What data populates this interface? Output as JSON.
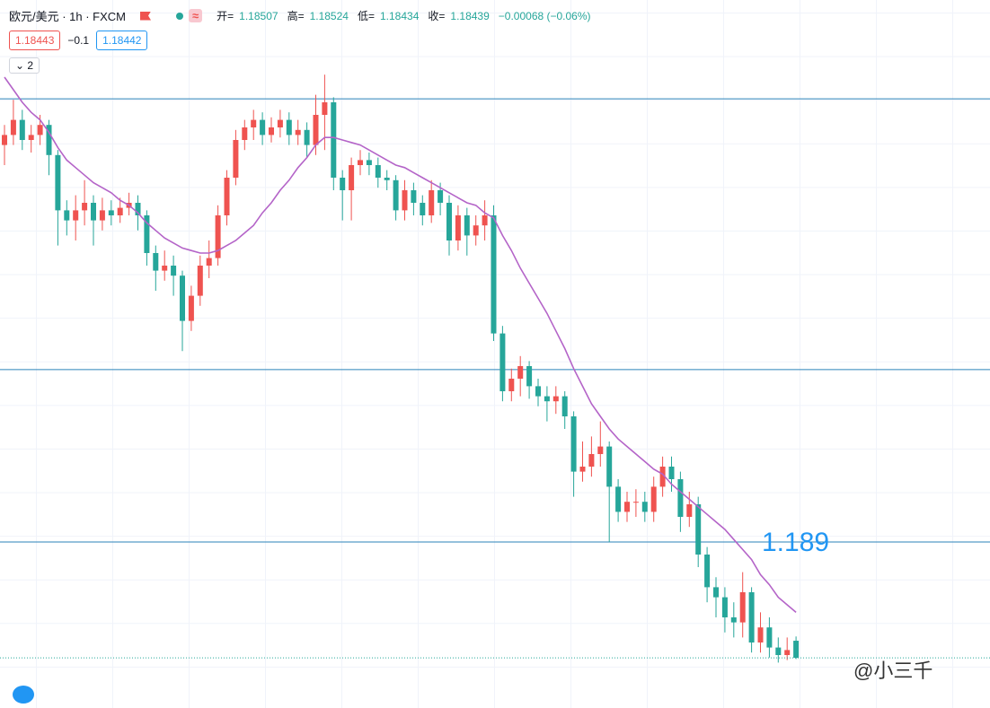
{
  "header": {
    "symbol": "欧元/美元 · 1h · FXCM",
    "ohlc": [
      {
        "label": "开=",
        "value": "1.18507"
      },
      {
        "label": "高=",
        "value": "1.18524"
      },
      {
        "label": "低=",
        "value": "1.18434"
      },
      {
        "label": "收=",
        "value": "1.18439"
      }
    ],
    "change": "−0.00068 (−0.06%)",
    "wave": "≈"
  },
  "quote": {
    "sell": "1.18443",
    "spread": "−0.1",
    "buy": "1.18442"
  },
  "indicators_toggle": "2",
  "watermark": "@小三千",
  "chart_data": {
    "type": "candlestick",
    "ylim": [
      1.1825,
      1.2095
    ],
    "up_color": "#ef5350",
    "down_color": "#26a69a",
    "open": [
      1.2048,
      1.2052,
      1.2058,
      1.205,
      1.2052,
      1.2056,
      1.2044,
      1.2022,
      1.2018,
      1.2022,
      1.2025,
      1.2018,
      1.2022,
      1.202,
      1.2023,
      1.2025,
      1.202,
      1.2005,
      1.1998,
      1.2,
      1.1996,
      1.1978,
      1.1988,
      1.2,
      1.2003,
      1.202,
      1.2035,
      1.205,
      1.2055,
      1.2058,
      1.2052,
      1.2055,
      1.2058,
      1.2052,
      1.2054,
      1.2048,
      1.206,
      1.2065,
      1.2035,
      1.203,
      1.204,
      1.2042,
      1.204,
      1.2035,
      1.2034,
      1.2022,
      1.203,
      1.2025,
      1.202,
      1.203,
      1.2025,
      1.201,
      1.202,
      1.2012,
      1.2016,
      1.202,
      1.1973,
      1.195,
      1.1955,
      1.196,
      1.1952,
      1.1948,
      1.1946,
      1.1948,
      1.194,
      1.1918,
      1.192,
      1.1925,
      1.1928,
      1.1912,
      1.1902,
      1.1906,
      1.1906,
      1.1902,
      1.1912,
      1.192,
      1.1915,
      1.19,
      1.1905,
      1.1885,
      1.1872,
      1.1868,
      1.186,
      1.1858,
      1.187,
      1.185,
      1.1856,
      1.1848,
      1.1845,
      1.18507
    ],
    "high": [
      1.2056,
      1.2066,
      1.2062,
      1.2056,
      1.206,
      1.2058,
      1.2046,
      1.2026,
      1.2028,
      1.2034,
      1.2028,
      1.2027,
      1.2026,
      1.2027,
      1.2029,
      1.2028,
      1.2022,
      1.2008,
      1.2006,
      1.2004,
      1.1998,
      1.1992,
      1.2004,
      1.201,
      1.2024,
      1.2038,
      1.2054,
      1.2058,
      1.2062,
      1.2061,
      1.2059,
      1.2062,
      1.2061,
      1.2058,
      1.2057,
      1.2068,
      1.2076,
      1.2067,
      1.2038,
      1.2043,
      1.2046,
      1.2045,
      1.2043,
      1.2038,
      1.2036,
      1.2034,
      1.2033,
      1.2028,
      1.2034,
      1.2033,
      1.2028,
      1.2024,
      1.2023,
      1.202,
      1.2026,
      1.2024,
      1.1976,
      1.1959,
      1.1964,
      1.1962,
      1.1955,
      1.1952,
      1.1952,
      1.195,
      1.1942,
      1.193,
      1.1932,
      1.1938,
      1.193,
      1.1915,
      1.191,
      1.1911,
      1.191,
      1.1916,
      1.1924,
      1.1924,
      1.1918,
      1.191,
      1.1908,
      1.1888,
      1.1876,
      1.1872,
      1.1866,
      1.1878,
      1.1872,
      1.1862,
      1.186,
      1.1852,
      1.1852,
      1.18524
    ],
    "low": [
      1.204,
      1.2048,
      1.2046,
      1.2045,
      1.2048,
      1.2036,
      1.2008,
      1.2012,
      1.201,
      1.2016,
      1.2008,
      1.2014,
      1.2016,
      1.2017,
      1.202,
      1.2014,
      1.2,
      1.199,
      1.1994,
      1.1988,
      1.1966,
      1.1974,
      1.1984,
      1.1995,
      1.2,
      1.2016,
      1.2032,
      1.2046,
      1.205,
      1.2048,
      1.2049,
      1.2051,
      1.2048,
      1.2048,
      1.2043,
      1.2044,
      1.2046,
      1.203,
      1.2018,
      1.2018,
      1.2036,
      1.2036,
      1.2031,
      1.203,
      1.2018,
      1.2018,
      1.202,
      1.2016,
      1.2017,
      1.202,
      1.2004,
      1.2006,
      1.2004,
      1.2008,
      1.201,
      1.197,
      1.1946,
      1.1946,
      1.1948,
      1.1947,
      1.1944,
      1.1938,
      1.1941,
      1.1935,
      1.1908,
      1.1914,
      1.1916,
      1.192,
      1.189,
      1.1898,
      1.1898,
      1.19,
      1.1898,
      1.1898,
      1.1908,
      1.191,
      1.1894,
      1.1896,
      1.188,
      1.1866,
      1.186,
      1.1854,
      1.1852,
      1.1852,
      1.1846,
      1.1846,
      1.1844,
      1.1842,
      1.1843,
      1.18434
    ],
    "close": [
      1.2052,
      1.2058,
      1.205,
      1.2052,
      1.2056,
      1.2044,
      1.2022,
      1.2018,
      1.2022,
      1.2025,
      1.2018,
      1.2022,
      1.202,
      1.2023,
      1.2025,
      1.202,
      1.2005,
      1.1998,
      1.2,
      1.1996,
      1.1978,
      1.1988,
      1.2,
      1.2003,
      1.202,
      1.2035,
      1.205,
      1.2055,
      1.2058,
      1.2052,
      1.2055,
      1.2058,
      1.2052,
      1.2054,
      1.2048,
      1.206,
      1.2065,
      1.2035,
      1.203,
      1.204,
      1.2042,
      1.204,
      1.2035,
      1.2034,
      1.2022,
      1.203,
      1.2025,
      1.202,
      1.203,
      1.2025,
      1.201,
      1.202,
      1.2012,
      1.2016,
      1.202,
      1.1973,
      1.195,
      1.1955,
      1.196,
      1.1952,
      1.1948,
      1.1946,
      1.1948,
      1.194,
      1.1918,
      1.192,
      1.1925,
      1.1928,
      1.1912,
      1.1902,
      1.1906,
      1.1906,
      1.1902,
      1.1912,
      1.192,
      1.1915,
      1.19,
      1.1905,
      1.1885,
      1.1872,
      1.1868,
      1.186,
      1.1858,
      1.187,
      1.185,
      1.1856,
      1.1848,
      1.1845,
      1.1847,
      1.18439
    ],
    "ma": {
      "color": "#b464c8",
      "values": [
        1.2075,
        1.207,
        1.2065,
        1.2061,
        1.2058,
        1.2053,
        1.2047,
        1.2042,
        1.2039,
        1.2036,
        1.2033,
        1.2031,
        1.2029,
        1.2026,
        1.2024,
        1.2021,
        1.2017,
        1.2014,
        1.2011,
        1.2009,
        1.2007,
        1.2006,
        1.2005,
        1.2005,
        1.2006,
        1.2008,
        1.201,
        1.2013,
        1.2016,
        1.2021,
        1.2025,
        1.203,
        1.2034,
        1.2039,
        1.2043,
        1.2048,
        1.2051,
        1.2051,
        1.205,
        1.2049,
        1.2048,
        1.2046,
        1.2044,
        1.2042,
        1.204,
        1.2039,
        1.2037,
        1.2035,
        1.2033,
        1.2031,
        1.2029,
        1.2027,
        1.2025,
        1.2024,
        1.2021,
        1.2019,
        1.2012,
        1.2006,
        1.1999,
        1.1993,
        1.1987,
        1.1981,
        1.1974,
        1.1967,
        1.1959,
        1.1952,
        1.1945,
        1.194,
        1.1935,
        1.1931,
        1.1928,
        1.1925,
        1.1922,
        1.1919,
        1.1917,
        1.1913,
        1.191,
        1.1907,
        1.1904,
        1.1901,
        1.1898,
        1.1895,
        1.1891,
        1.1887,
        1.1883,
        1.1877,
        1.1873,
        1.1868,
        1.1865,
        1.1862
      ]
    },
    "hlines": {
      "color": "#2b83ba",
      "lines": [
        {
          "value": 1.20664
        },
        {
          "value": 1.19586
        },
        {
          "value": 1.189,
          "label": "1.189"
        }
      ]
    }
  }
}
